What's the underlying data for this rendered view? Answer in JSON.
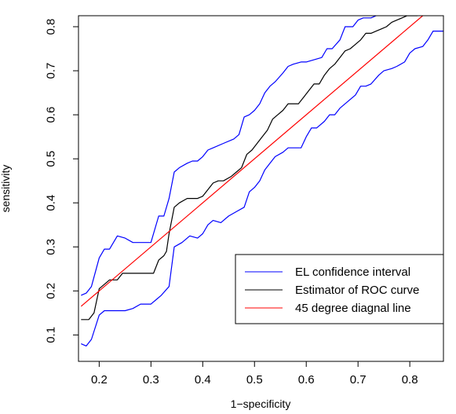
{
  "chart_data": {
    "type": "line",
    "title": "",
    "xlabel": "1−specificity",
    "ylabel": "sensitivity",
    "xlim": [
      0.16,
      0.865
    ],
    "ylim": [
      0.04,
      0.825
    ],
    "xticks": [
      0.2,
      0.3,
      0.4,
      0.5,
      0.6,
      0.7,
      0.8
    ],
    "xtick_labels": [
      "0.2",
      "0.3",
      "0.4",
      "0.5",
      "0.6",
      "0.7",
      "0.8"
    ],
    "yticks": [
      0.1,
      0.2,
      0.3,
      0.4,
      0.5,
      0.6,
      0.7,
      0.8
    ],
    "ytick_labels": [
      "0.1",
      "0.2",
      "0.3",
      "0.4",
      "0.5",
      "0.6",
      "0.7",
      "0.8"
    ],
    "grid": false,
    "legend_position": "bottom-right",
    "series": [
      {
        "name": "EL confidence interval",
        "color": "#0000ff",
        "x": [
          0.165,
          0.175,
          0.185,
          0.2,
          0.21,
          0.22,
          0.235,
          0.25,
          0.265,
          0.28,
          0.3,
          0.315,
          0.325,
          0.335,
          0.345,
          0.355,
          0.37,
          0.38,
          0.39,
          0.4,
          0.41,
          0.42,
          0.44,
          0.46,
          0.47,
          0.48,
          0.49,
          0.5,
          0.51,
          0.52,
          0.53,
          0.54,
          0.555,
          0.565,
          0.575,
          0.59,
          0.6,
          0.615,
          0.63,
          0.64,
          0.65,
          0.665,
          0.675,
          0.69,
          0.7,
          0.71,
          0.725,
          0.735
        ],
        "values": [
          0.19,
          0.195,
          0.21,
          0.275,
          0.295,
          0.295,
          0.325,
          0.32,
          0.31,
          0.31,
          0.31,
          0.37,
          0.37,
          0.41,
          0.47,
          0.48,
          0.49,
          0.495,
          0.495,
          0.505,
          0.52,
          0.525,
          0.535,
          0.545,
          0.555,
          0.595,
          0.6,
          0.61,
          0.625,
          0.65,
          0.665,
          0.675,
          0.695,
          0.71,
          0.715,
          0.72,
          0.72,
          0.725,
          0.73,
          0.75,
          0.75,
          0.77,
          0.8,
          0.8,
          0.815,
          0.82,
          0.82,
          0.825
        ],
        "lower_x": [
          0.165,
          0.175,
          0.185,
          0.2,
          0.21,
          0.225,
          0.25,
          0.265,
          0.28,
          0.3,
          0.31,
          0.32,
          0.335,
          0.345,
          0.36,
          0.375,
          0.39,
          0.4,
          0.41,
          0.42,
          0.435,
          0.45,
          0.465,
          0.48,
          0.49,
          0.5,
          0.51,
          0.52,
          0.53,
          0.54,
          0.555,
          0.565,
          0.58,
          0.59,
          0.6,
          0.61,
          0.62,
          0.635,
          0.645,
          0.655,
          0.665,
          0.68,
          0.695,
          0.705,
          0.715,
          0.725,
          0.74,
          0.75,
          0.765,
          0.775,
          0.79,
          0.8,
          0.81,
          0.825,
          0.835,
          0.845,
          0.855,
          0.865
        ],
        "lower_values": [
          0.08,
          0.075,
          0.09,
          0.145,
          0.155,
          0.155,
          0.155,
          0.16,
          0.17,
          0.17,
          0.18,
          0.19,
          0.21,
          0.3,
          0.31,
          0.325,
          0.32,
          0.33,
          0.35,
          0.36,
          0.355,
          0.37,
          0.38,
          0.39,
          0.425,
          0.435,
          0.45,
          0.475,
          0.49,
          0.505,
          0.515,
          0.525,
          0.525,
          0.525,
          0.55,
          0.57,
          0.57,
          0.585,
          0.6,
          0.6,
          0.615,
          0.63,
          0.645,
          0.665,
          0.665,
          0.67,
          0.69,
          0.7,
          0.705,
          0.71,
          0.72,
          0.74,
          0.75,
          0.755,
          0.77,
          0.79,
          0.79,
          0.79
        ]
      },
      {
        "name": "Estimator of ROC curve",
        "color": "#000000",
        "x": [
          0.165,
          0.18,
          0.19,
          0.2,
          0.21,
          0.22,
          0.235,
          0.245,
          0.26,
          0.27,
          0.28,
          0.29,
          0.3,
          0.305,
          0.315,
          0.325,
          0.33,
          0.335,
          0.345,
          0.355,
          0.37,
          0.38,
          0.39,
          0.4,
          0.41,
          0.42,
          0.43,
          0.44,
          0.455,
          0.465,
          0.475,
          0.485,
          0.495,
          0.505,
          0.515,
          0.525,
          0.535,
          0.545,
          0.555,
          0.565,
          0.575,
          0.585,
          0.595,
          0.605,
          0.615,
          0.625,
          0.635,
          0.645,
          0.655,
          0.665,
          0.675,
          0.685,
          0.695,
          0.705,
          0.715,
          0.725,
          0.735,
          0.745,
          0.755,
          0.765,
          0.775,
          0.785,
          0.795,
          0.805,
          0.815
        ],
        "values": [
          0.135,
          0.135,
          0.15,
          0.205,
          0.215,
          0.225,
          0.225,
          0.24,
          0.24,
          0.24,
          0.24,
          0.24,
          0.24,
          0.24,
          0.27,
          0.28,
          0.29,
          0.33,
          0.39,
          0.4,
          0.41,
          0.41,
          0.41,
          0.415,
          0.43,
          0.445,
          0.45,
          0.45,
          0.46,
          0.47,
          0.48,
          0.51,
          0.52,
          0.535,
          0.55,
          0.565,
          0.59,
          0.6,
          0.61,
          0.625,
          0.625,
          0.625,
          0.64,
          0.655,
          0.67,
          0.67,
          0.69,
          0.705,
          0.715,
          0.73,
          0.745,
          0.75,
          0.76,
          0.77,
          0.785,
          0.785,
          0.79,
          0.795,
          0.8,
          0.81,
          0.815,
          0.82,
          0.825,
          0.825,
          0.825
        ]
      },
      {
        "name": "45 degree diagnal line",
        "color": "#ff0000",
        "x": [
          0.165,
          0.825
        ],
        "values": [
          0.165,
          0.825
        ]
      }
    ]
  }
}
